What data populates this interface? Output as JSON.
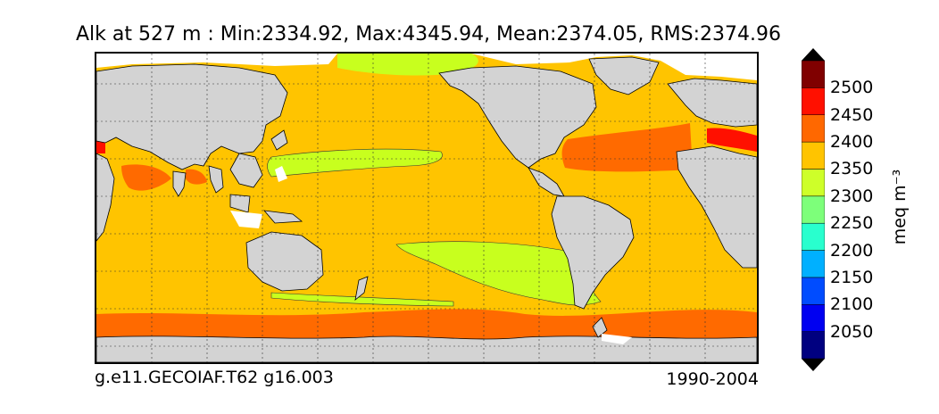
{
  "map": {
    "title": "Alk at 527 m : Min:2334.92, Max:4345.94, Mean:2374.05, RMS:2374.96",
    "variable": "Alk",
    "depth": "527 m",
    "stats": {
      "min": 2334.92,
      "max": 4345.94,
      "mean": 2374.05,
      "rms": 2374.96
    },
    "footer_left": "g.e11.GECOIAF.T62 g16.003",
    "footer_right": "1990-2004",
    "land_color": "#d3d3d3",
    "colors": {
      "2300-2350": "#c8ff1e",
      "2350-2400": "#ffc400",
      "2400-2450": "#ff6a00",
      "2450-2500": "#ff1000",
      "over": "#800000"
    }
  },
  "colorbar": {
    "unit": "meq m⁻³",
    "ticks": [
      "2500",
      "2450",
      "2400",
      "2350",
      "2300",
      "2250",
      "2200",
      "2150",
      "2100",
      "2050"
    ],
    "bands": [
      {
        "color": "#000080"
      },
      {
        "color": "#0000f1"
      },
      {
        "color": "#004cff"
      },
      {
        "color": "#00b0ff"
      },
      {
        "color": "#29ffce"
      },
      {
        "color": "#7dff7a"
      },
      {
        "color": "#ceff29"
      },
      {
        "color": "#ffc400"
      },
      {
        "color": "#ff6800"
      },
      {
        "color": "#ff1000"
      },
      {
        "color": "#800000"
      }
    ]
  }
}
